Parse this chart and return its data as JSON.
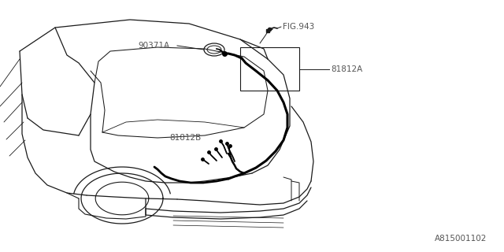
{
  "background_color": "#ffffff",
  "line_color": "#1a1a1a",
  "label_color": "#555555",
  "labels": {
    "fig943": "FIG.943",
    "part_a": "81812A",
    "part_b": "81812B",
    "part_c": "90371A",
    "diagram_id": "A815001102"
  },
  "label_fontsize": 7.5,
  "diagram_id_fontsize": 7.5
}
